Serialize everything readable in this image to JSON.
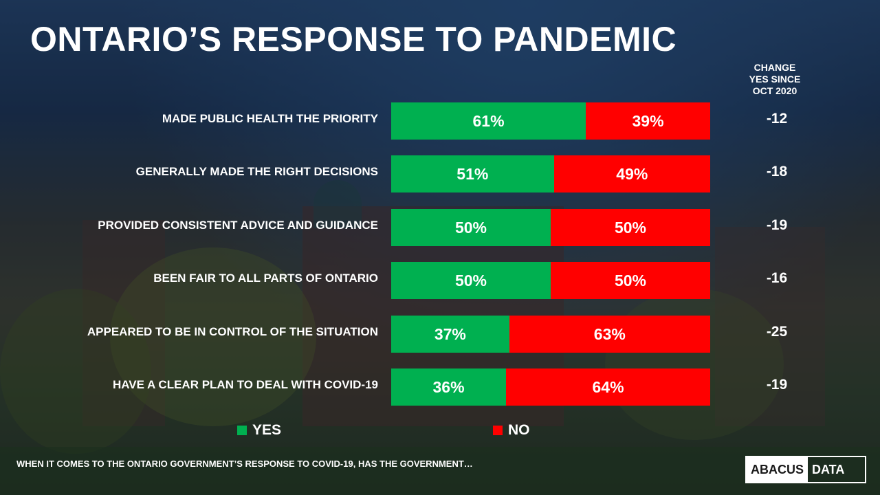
{
  "title": "ONTARIO’S RESPONSE TO PANDEMIC",
  "change_header": [
    "CHANGE",
    "YES SINCE",
    "OCT 2020"
  ],
  "colors": {
    "yes": "#00b050",
    "no": "#ff0000"
  },
  "legend": [
    {
      "key": "yes",
      "label": "YES"
    },
    {
      "key": "no",
      "label": "NO"
    }
  ],
  "footnote": "WHEN IT COMES TO THE ONTARIO GOVERNMENT’S RESPONSE TO COVID-19, HAS THE GOVERNMENT…",
  "logo": {
    "left": "ABACUS",
    "right": "DATA"
  },
  "chart_data": {
    "type": "bar",
    "orientation": "horizontal-stacked-100",
    "categories": [
      "MADE PUBLIC HEALTH THE PRIORITY",
      "GENERALLY MADE THE RIGHT DECISIONS",
      "PROVIDED CONSISTENT ADVICE AND GUIDANCE",
      "BEEN FAIR TO ALL PARTS OF ONTARIO",
      "APPEARED TO BE IN CONTROL OF THE SITUATION",
      "HAVE A CLEAR PLAN TO DEAL WITH COVID-19"
    ],
    "series": [
      {
        "name": "YES",
        "values": [
          61,
          51,
          50,
          50,
          37,
          36
        ],
        "labels": [
          "61%",
          "51%",
          "50%",
          "50%",
          "37%",
          "36%"
        ]
      },
      {
        "name": "NO",
        "values": [
          39,
          49,
          50,
          50,
          63,
          64
        ],
        "labels": [
          "39%",
          "49%",
          "50%",
          "50%",
          "63%",
          "64%"
        ]
      }
    ],
    "change": [
      "-12",
      "-18",
      "-19",
      "-16",
      "-25",
      "-19"
    ],
    "legend_position": "bottom"
  }
}
